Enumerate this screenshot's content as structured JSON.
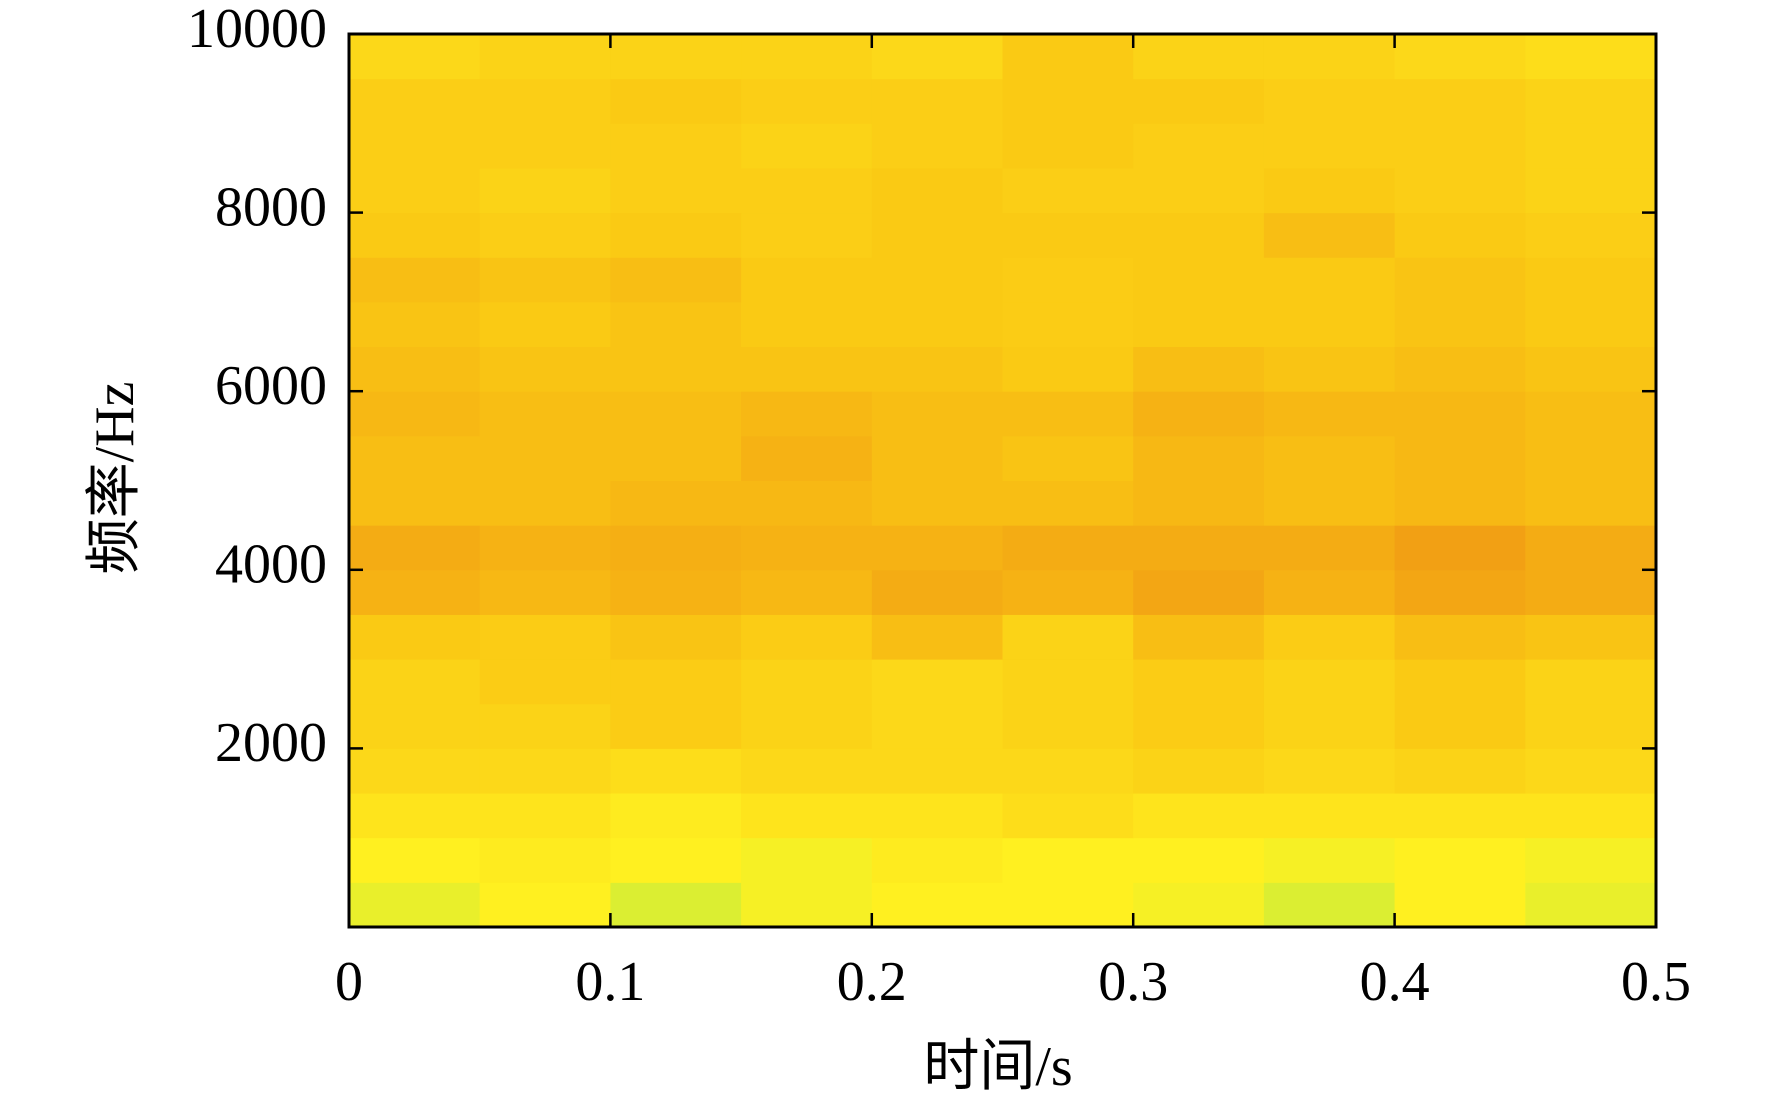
{
  "chart_data": {
    "type": "heatmap",
    "xlabel": "时间/s",
    "ylabel": "频率/Hz",
    "x": [
      0.025,
      0.075,
      0.125,
      0.175,
      0.225,
      0.275,
      0.325,
      0.375,
      0.425,
      0.475
    ],
    "y": [
      250,
      750,
      1250,
      1750,
      2250,
      2750,
      3250,
      3750,
      4250,
      4750,
      5250,
      5750,
      6250,
      6750,
      7250,
      7750,
      8250,
      8750,
      9250,
      9750
    ],
    "z": [
      [
        0.45,
        0.5,
        0.42,
        0.48,
        0.5,
        0.5,
        0.48,
        0.42,
        0.5,
        0.45
      ],
      [
        0.5,
        0.52,
        0.5,
        0.48,
        0.52,
        0.5,
        0.5,
        0.48,
        0.5,
        0.48
      ],
      [
        0.55,
        0.55,
        0.52,
        0.55,
        0.55,
        0.58,
        0.55,
        0.55,
        0.55,
        0.55
      ],
      [
        0.6,
        0.6,
        0.58,
        0.6,
        0.6,
        0.6,
        0.62,
        0.6,
        0.62,
        0.6
      ],
      [
        0.62,
        0.62,
        0.65,
        0.62,
        0.6,
        0.62,
        0.65,
        0.62,
        0.66,
        0.62
      ],
      [
        0.62,
        0.65,
        0.65,
        0.62,
        0.6,
        0.62,
        0.65,
        0.62,
        0.66,
        0.62
      ],
      [
        0.66,
        0.65,
        0.68,
        0.65,
        0.7,
        0.62,
        0.7,
        0.65,
        0.7,
        0.68
      ],
      [
        0.74,
        0.72,
        0.74,
        0.72,
        0.76,
        0.74,
        0.78,
        0.74,
        0.78,
        0.76
      ],
      [
        0.76,
        0.74,
        0.75,
        0.74,
        0.74,
        0.76,
        0.76,
        0.76,
        0.8,
        0.76
      ],
      [
        0.7,
        0.7,
        0.72,
        0.72,
        0.7,
        0.7,
        0.72,
        0.7,
        0.72,
        0.7
      ],
      [
        0.7,
        0.7,
        0.7,
        0.74,
        0.7,
        0.68,
        0.72,
        0.7,
        0.72,
        0.7
      ],
      [
        0.72,
        0.7,
        0.7,
        0.72,
        0.7,
        0.7,
        0.74,
        0.72,
        0.72,
        0.7
      ],
      [
        0.7,
        0.68,
        0.68,
        0.68,
        0.68,
        0.66,
        0.7,
        0.68,
        0.7,
        0.68
      ],
      [
        0.68,
        0.66,
        0.68,
        0.66,
        0.66,
        0.65,
        0.66,
        0.66,
        0.68,
        0.66
      ],
      [
        0.7,
        0.68,
        0.7,
        0.66,
        0.66,
        0.65,
        0.66,
        0.66,
        0.68,
        0.66
      ],
      [
        0.66,
        0.64,
        0.66,
        0.64,
        0.66,
        0.66,
        0.66,
        0.7,
        0.66,
        0.64
      ],
      [
        0.64,
        0.62,
        0.64,
        0.64,
        0.66,
        0.64,
        0.64,
        0.66,
        0.64,
        0.62
      ],
      [
        0.64,
        0.64,
        0.64,
        0.62,
        0.64,
        0.66,
        0.64,
        0.64,
        0.64,
        0.62
      ],
      [
        0.64,
        0.64,
        0.66,
        0.64,
        0.64,
        0.66,
        0.66,
        0.64,
        0.64,
        0.62
      ],
      [
        0.6,
        0.62,
        0.62,
        0.62,
        0.6,
        0.66,
        0.62,
        0.62,
        0.6,
        0.58
      ]
    ],
    "colormap": [
      "#2cb4d8",
      "#5ad2b4",
      "#b4ec46",
      "#fff020",
      "#fac814",
      "#f09614",
      "#e06414"
    ],
    "xlim": [
      0,
      0.5
    ],
    "xticks": [
      0,
      0.1,
      0.2,
      0.3,
      0.4,
      0.5
    ],
    "ylim": [
      0,
      10000
    ],
    "yticks": [
      2000,
      4000,
      6000,
      8000,
      10000
    ]
  }
}
